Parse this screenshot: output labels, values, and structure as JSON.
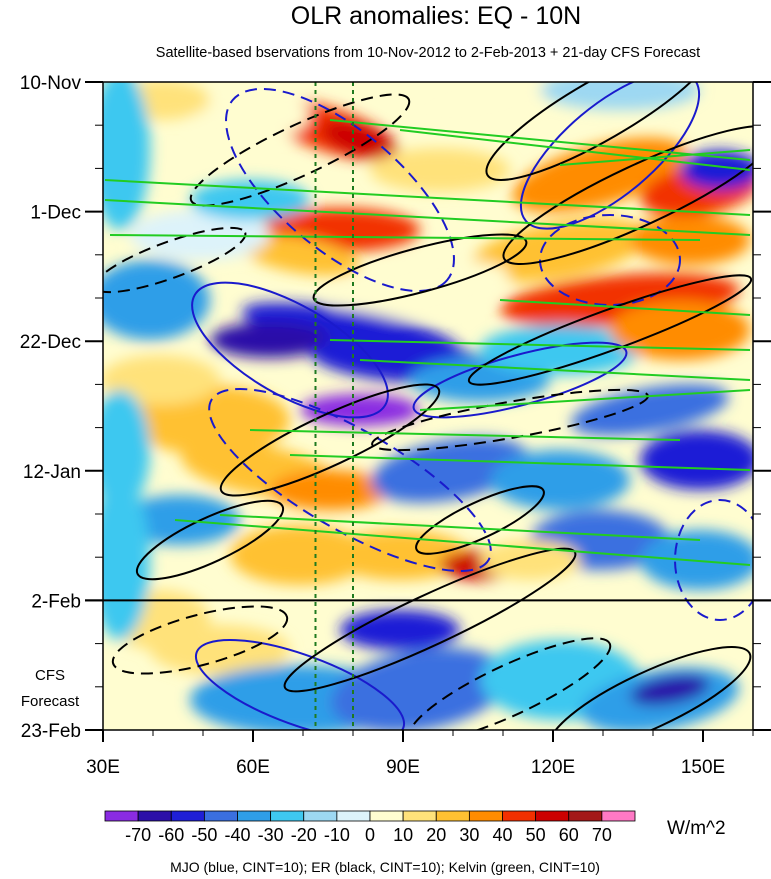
{
  "chart_data": {
    "type": "heatmap",
    "title": "OLR anomalies: EQ - 10N",
    "subtitle": "Satellite-based bservations from 10-Nov-2012 to 2-Feb-2013 + 21-day CFS Forecast",
    "x_axis": {
      "range": [
        30,
        160
      ],
      "ticks": [
        {
          "value": 30,
          "label": "30E"
        },
        {
          "value": 60,
          "label": "60E"
        },
        {
          "value": 90,
          "label": "90E"
        },
        {
          "value": 120,
          "label": "120E"
        },
        {
          "value": 150,
          "label": "150E"
        }
      ],
      "minor_ticks": [
        40,
        50,
        70,
        80,
        100,
        110,
        130,
        140,
        160
      ]
    },
    "y_axis": {
      "ticks": [
        {
          "value": "2012-11-10",
          "label": "10-Nov"
        },
        {
          "value": "2012-12-01",
          "label": "1-Dec"
        },
        {
          "value": "2012-12-22",
          "label": "22-Dec"
        },
        {
          "value": "2013-01-12",
          "label": "12-Jan"
        },
        {
          "value": "2013-02-02",
          "label": "2-Feb"
        },
        {
          "value": "2013-02-23",
          "label": "23-Feb"
        }
      ],
      "reversed": true
    },
    "forecast_start": "2013-02-02",
    "forecast_label": [
      "CFS",
      "Forecast"
    ],
    "reference_lines_lon": [
      72.5,
      80
    ],
    "colorbar": {
      "units": "W/m^2",
      "labels": [
        "-70",
        "-60",
        "-50",
        "-40",
        "-30",
        "-20",
        "-10",
        "0",
        "10",
        "20",
        "30",
        "40",
        "50",
        "60",
        "70"
      ],
      "colors": [
        "#8a2be2",
        "#2c0fa8",
        "#1f1fd6",
        "#3a6fe0",
        "#2f9ee8",
        "#3ec8f0",
        "#9dd8f2",
        "#ddf3fa",
        "#fffdd0",
        "#ffe27a",
        "#ffc132",
        "#ff8c00",
        "#f23000",
        "#cc0000",
        "#a31818",
        "#ff79c5"
      ]
    },
    "legend_text": "MJO (blue, CINT=10); ER (black, CINT=10); Kelvin (green, CINT=10)"
  }
}
